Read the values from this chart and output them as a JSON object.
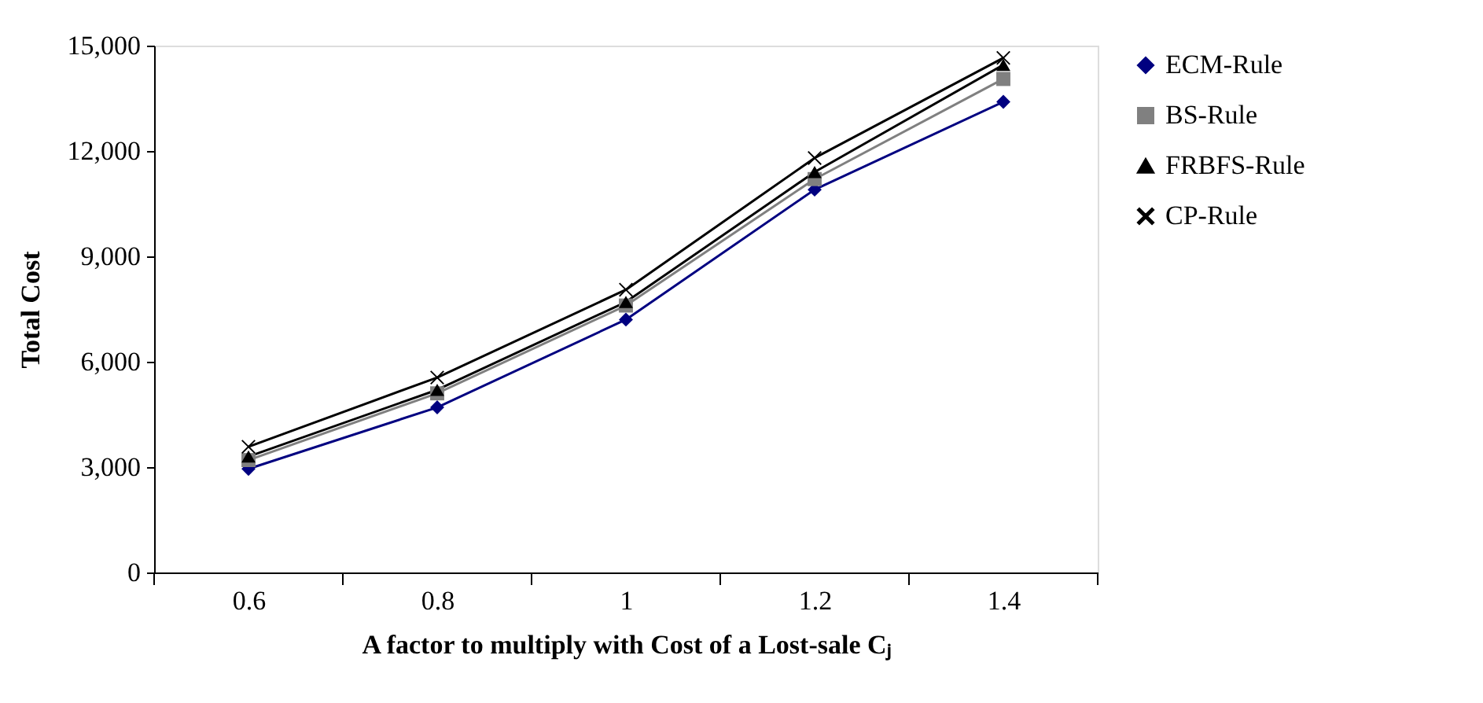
{
  "chart_data": {
    "type": "line",
    "xlabel": "A factor to multiply with Cost of a Lost-sale Cⱼ",
    "ylabel": "Total Cost",
    "categories": [
      "0.6",
      "0.8",
      "1",
      "1.2",
      "1.4"
    ],
    "series": [
      {
        "name": "ECM-Rule",
        "color": "#000080",
        "marker": "diamond",
        "values": [
          2950,
          4700,
          7200,
          10900,
          13400
        ]
      },
      {
        "name": "BS-Rule",
        "color": "#808080",
        "marker": "square",
        "values": [
          3200,
          5100,
          7600,
          11200,
          14050
        ]
      },
      {
        "name": "FRBFS-Rule",
        "color": "#000000",
        "marker": "triangle",
        "values": [
          3300,
          5200,
          7700,
          11400,
          14450
        ]
      },
      {
        "name": "CP-Rule",
        "color": "#000000",
        "marker": "cross",
        "values": [
          3580,
          5550,
          8050,
          11800,
          14650
        ]
      }
    ],
    "ylim": [
      0,
      15000
    ],
    "yticks": [
      0,
      {
        "value": 3000,
        "label": "3,000"
      },
      {
        "value": 6000,
        "label": "6,000"
      },
      {
        "value": 9000,
        "label": "9,000"
      },
      {
        "value": 12000,
        "label": "12,000"
      },
      {
        "value": 15000,
        "label": "15,000"
      }
    ],
    "grid": false,
    "legend": "right",
    "line_style": "solid"
  }
}
